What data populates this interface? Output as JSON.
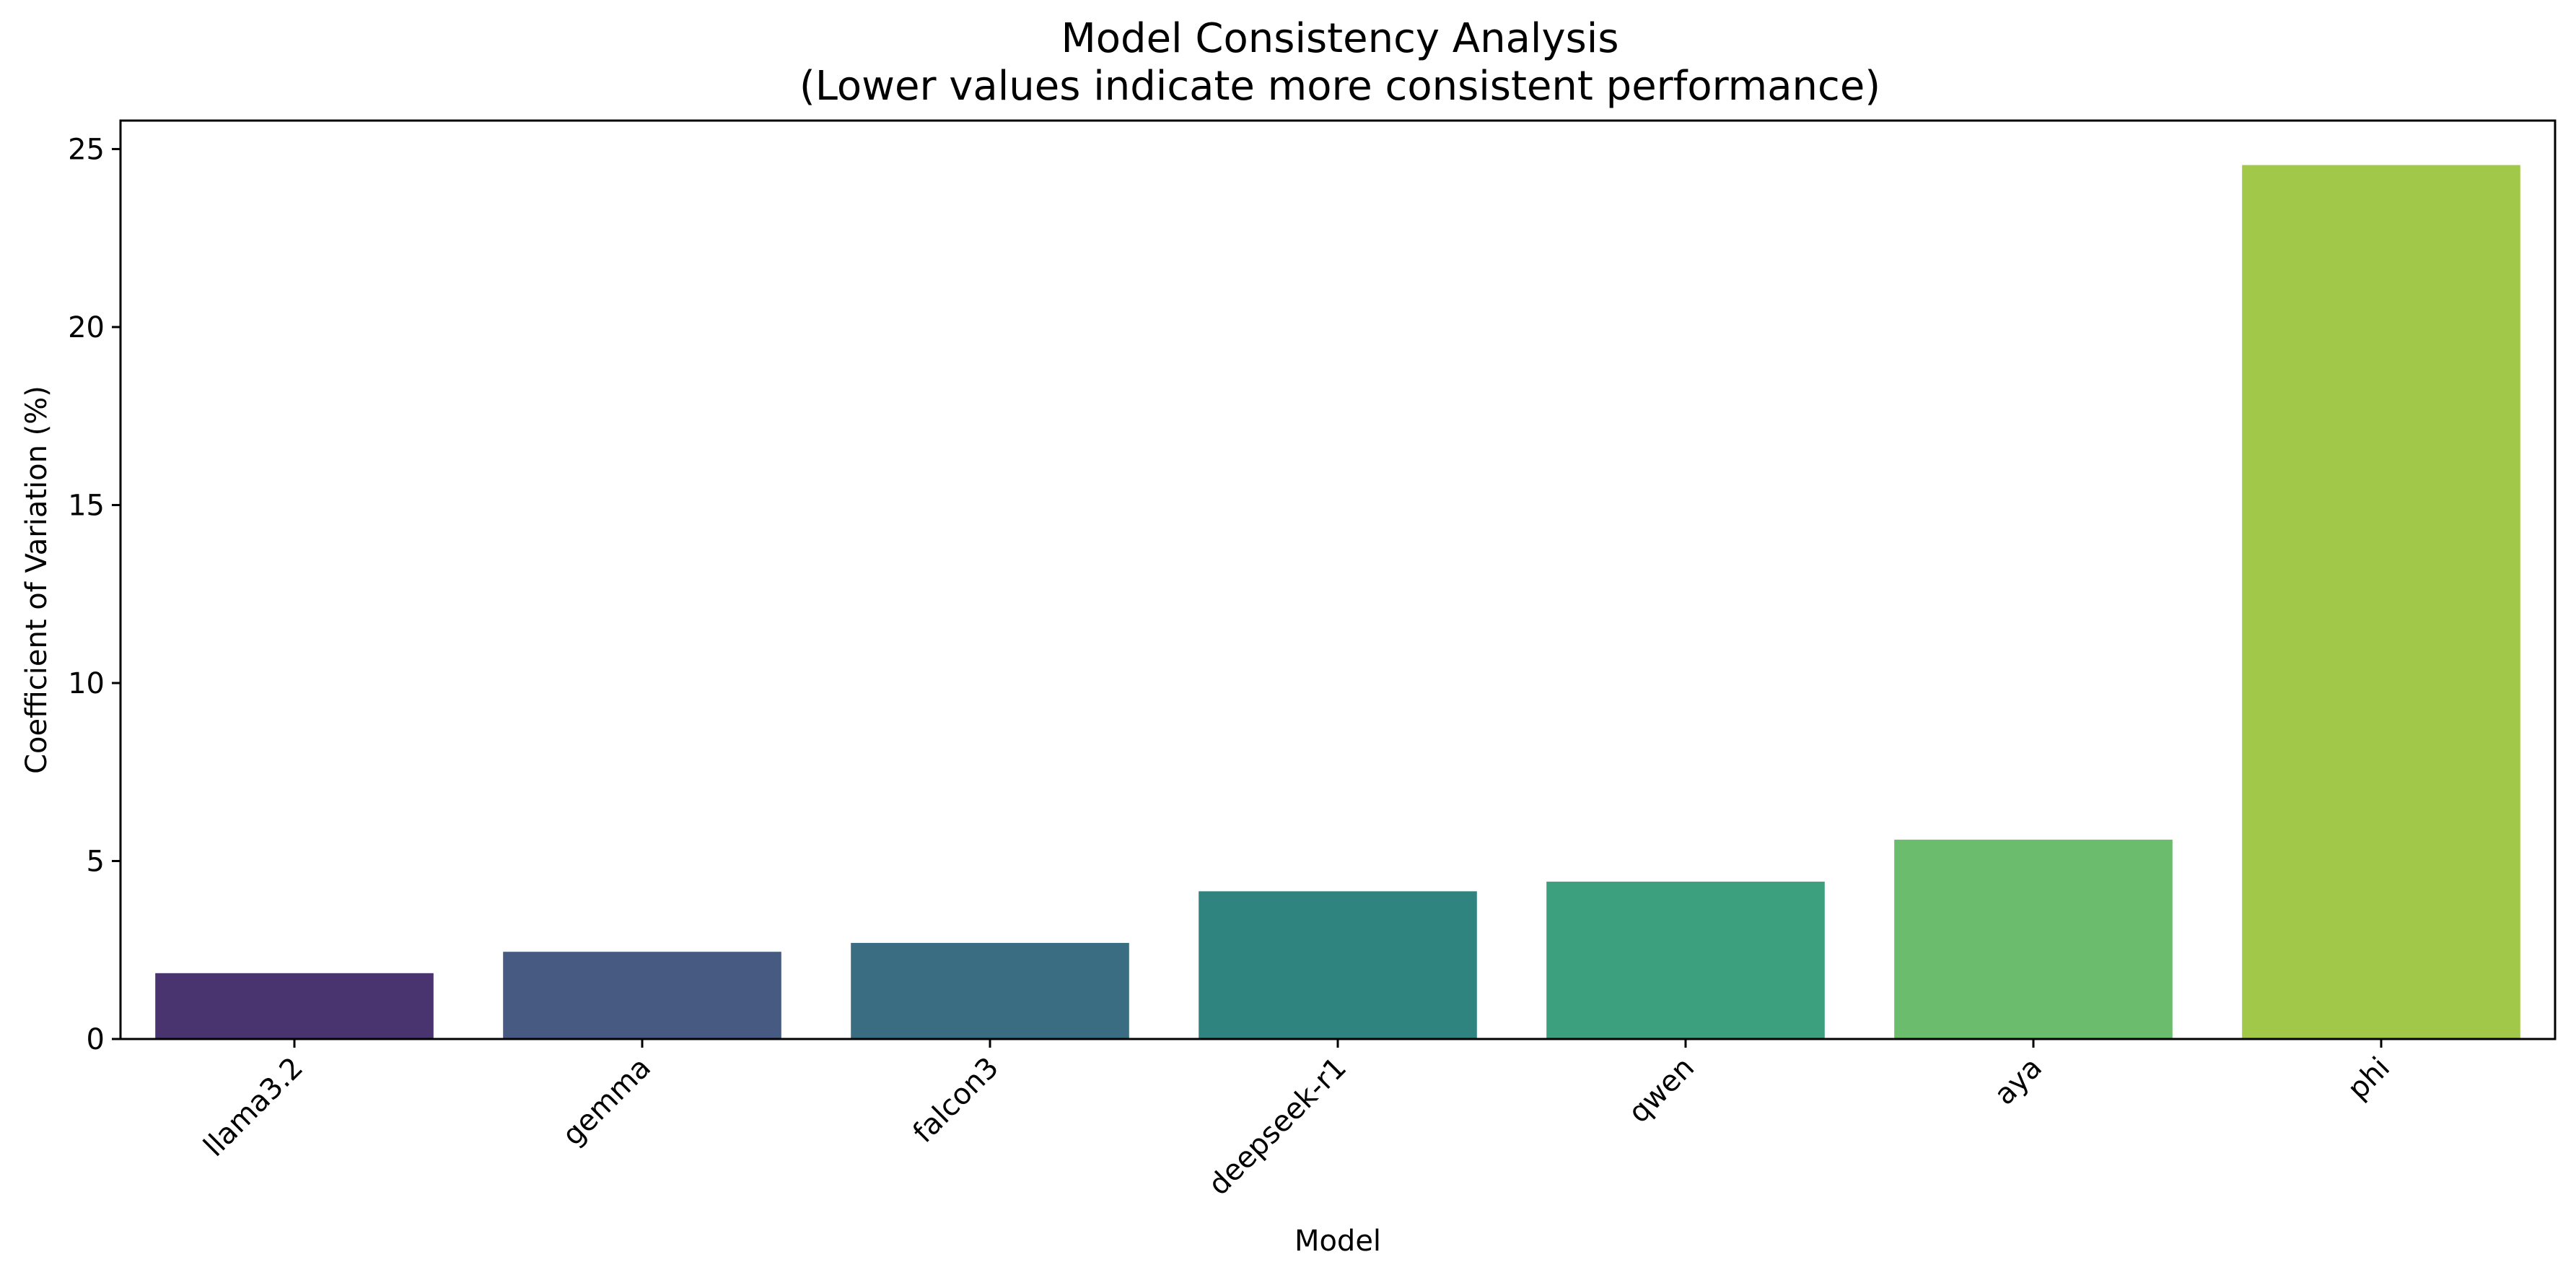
{
  "chart_data": {
    "type": "bar",
    "title": "Model Consistency Analysis",
    "subtitle": "(Lower values indicate more consistent performance)",
    "xlabel": "Model",
    "ylabel": "Coefficient of Variation (%)",
    "categories": [
      "llama3.2",
      "gemma",
      "falcon3",
      "deepseek-r1",
      "qwen",
      "aya",
      "phi"
    ],
    "values": [
      1.85,
      2.45,
      2.7,
      4.15,
      4.42,
      5.6,
      24.55
    ],
    "colors": [
      "#482878",
      "#3e4989",
      "#31688e",
      "#26828e",
      "#35b779",
      "#6ece58",
      "#a2c84a"
    ],
    "bar_colors_rendered": [
      "#4a3470",
      "#465a82",
      "#3b6d82",
      "#2f8480",
      "#3c9f7d",
      "#6bbc6d",
      "#a2c84a"
    ],
    "yticks": [
      0,
      5,
      10,
      15,
      20,
      25
    ],
    "ylim": [
      0,
      25.8
    ],
    "grid": false,
    "legend": "none"
  }
}
